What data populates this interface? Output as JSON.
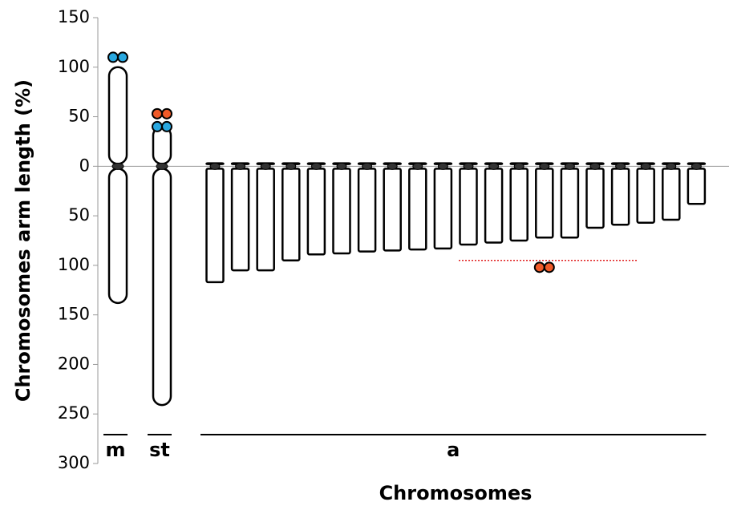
{
  "chart_data": {
    "type": "idiogram",
    "y_label": "Chromosomes  arm length (%)",
    "x_label": "Chromosomes",
    "ylim": [
      150,
      -300
    ],
    "yticks": [
      150,
      100,
      50,
      0,
      {
        "value": -50,
        "label": "50"
      },
      {
        "value": -100,
        "label": "100"
      },
      {
        "value": -150,
        "label": "150"
      },
      {
        "value": -200,
        "label": "200"
      },
      {
        "value": -250,
        "label": "250"
      },
      {
        "value": -300,
        "label": "300"
      }
    ],
    "groups": [
      {
        "label": "m",
        "chromosomes": [
          {
            "short_arm": 100,
            "long_arm": -138,
            "signals": [
              {
                "value": 110,
                "color": "#29a8e0"
              }
            ]
          }
        ]
      },
      {
        "label": "st",
        "chromosomes": [
          {
            "short_arm": 40,
            "long_arm": -241,
            "signals": [
              {
                "value": 53,
                "color": "#f05a28"
              },
              {
                "value": 40,
                "color": "#29a8e0"
              }
            ]
          }
        ]
      },
      {
        "label": "a",
        "reference_line": -95,
        "chromosomes": [
          {
            "short_arm": 3,
            "long_arm": -117,
            "signals": []
          },
          {
            "short_arm": 3,
            "long_arm": -105,
            "signals": []
          },
          {
            "short_arm": 3,
            "long_arm": -105,
            "signals": []
          },
          {
            "short_arm": 3,
            "long_arm": -95,
            "signals": []
          },
          {
            "short_arm": 3,
            "long_arm": -89,
            "signals": []
          },
          {
            "short_arm": 3,
            "long_arm": -88,
            "signals": []
          },
          {
            "short_arm": 3,
            "long_arm": -86,
            "signals": []
          },
          {
            "short_arm": 3,
            "long_arm": -85,
            "signals": []
          },
          {
            "short_arm": 3,
            "long_arm": -84,
            "signals": []
          },
          {
            "short_arm": 3,
            "long_arm": -83,
            "signals": []
          },
          {
            "short_arm": 3,
            "long_arm": -79,
            "signals": []
          },
          {
            "short_arm": 3,
            "long_arm": -77,
            "signals": []
          },
          {
            "short_arm": 3,
            "long_arm": -75,
            "signals": []
          },
          {
            "short_arm": 3,
            "long_arm": -72,
            "signals": [
              {
                "value": -102,
                "color": "#f05a28"
              }
            ]
          },
          {
            "short_arm": 3,
            "long_arm": -72,
            "signals": []
          },
          {
            "short_arm": 3,
            "long_arm": -62,
            "signals": []
          },
          {
            "short_arm": 3,
            "long_arm": -59,
            "signals": []
          },
          {
            "short_arm": 3,
            "long_arm": -57,
            "signals": []
          },
          {
            "short_arm": 3,
            "long_arm": -54,
            "signals": []
          },
          {
            "short_arm": 3,
            "long_arm": -38,
            "signals": []
          }
        ]
      }
    ]
  }
}
